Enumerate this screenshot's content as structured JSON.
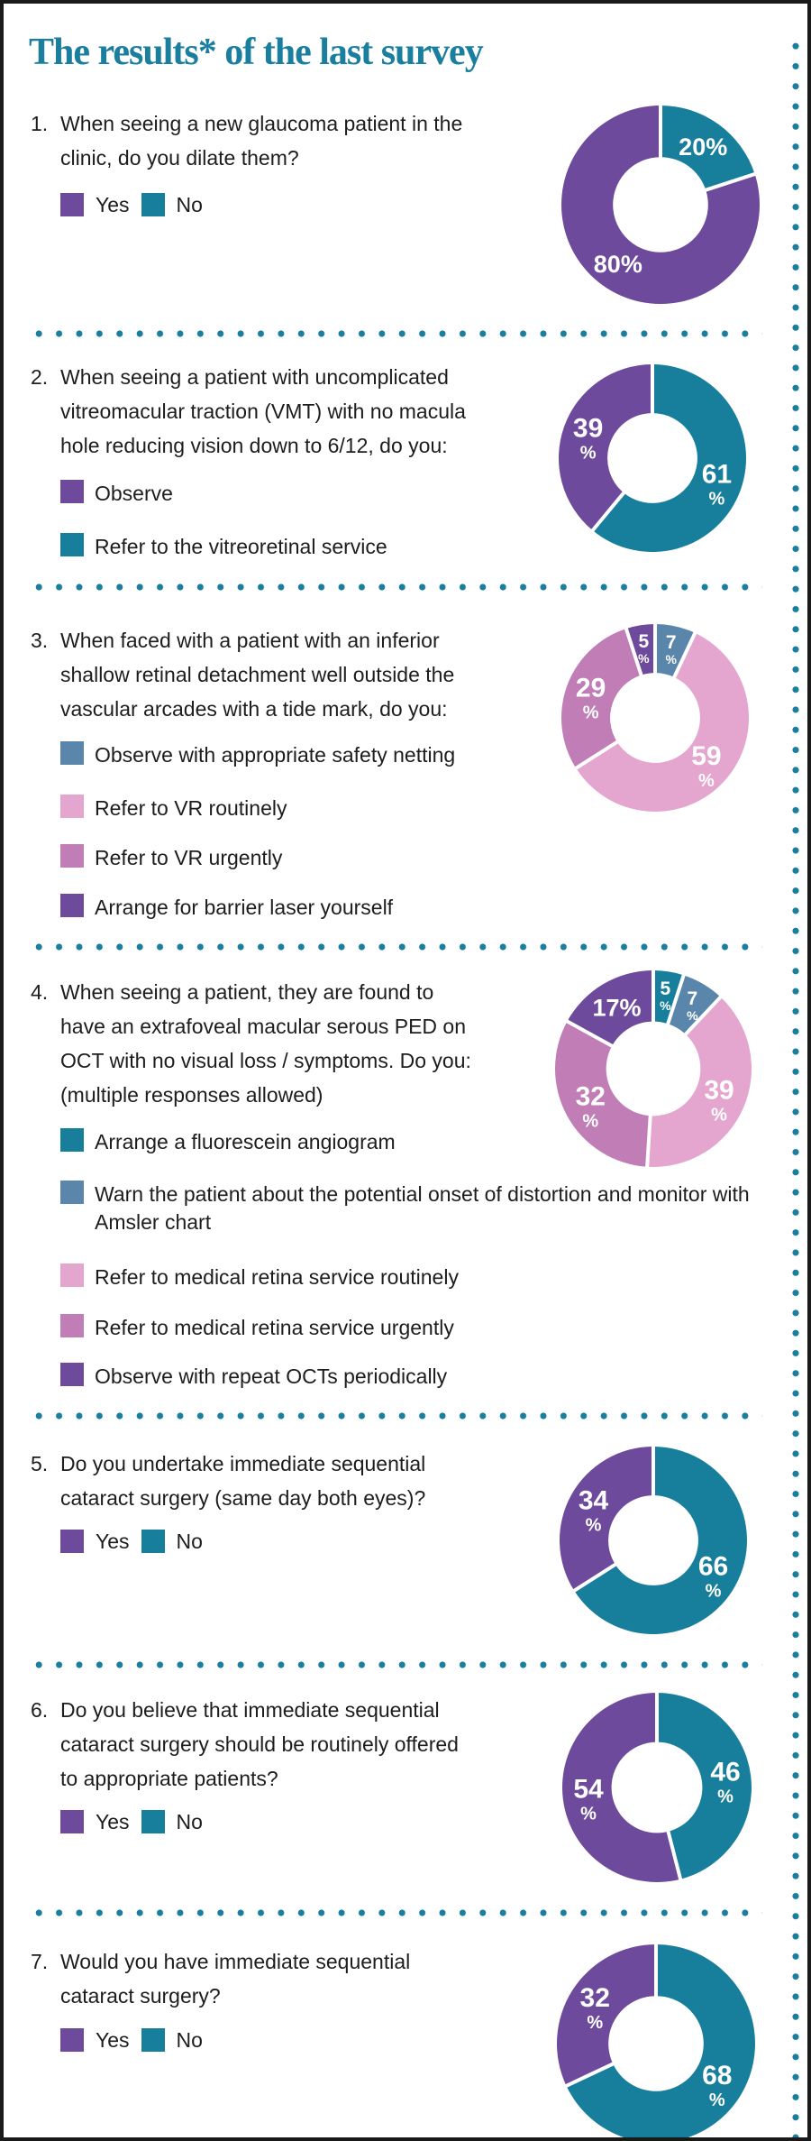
{
  "title": "The results* of the last survey",
  "palette": {
    "teal": "#177e9c",
    "purple": "#6d4a9b",
    "steel_blue": "#5b86ab",
    "light_pink": "#e4a6cf",
    "orchid": "#c07db6",
    "title_text": "#1a7f9e",
    "body_text": "#1d1d1d",
    "dots": "#1a7f9e",
    "chart_label_text": "#ffffff"
  },
  "questions": [
    {
      "number": "1.",
      "text_lines": [
        "When seeing a new glaucoma patient in the",
        "clinic, do you dilate them?"
      ],
      "legend_layout": "inline",
      "legend": [
        {
          "label": "Yes",
          "color": "purple"
        },
        {
          "label": "No",
          "color": "teal"
        }
      ]
    },
    {
      "number": "2.",
      "text_lines": [
        "When seeing a patient with uncomplicated",
        "vitreomacular traction (VMT) with no macula",
        "hole reducing vision down to 6/12, do you:"
      ],
      "legend_layout": "list",
      "legend": [
        {
          "label": "Observe",
          "color": "purple"
        },
        {
          "label": "Refer to the vitreoretinal service",
          "color": "teal"
        }
      ]
    },
    {
      "number": "3.",
      "text_lines": [
        "When faced with a patient with an inferior",
        "shallow retinal detachment well outside the",
        "vascular arcades with a tide mark, do you:"
      ],
      "legend_layout": "list",
      "legend": [
        {
          "label": "Observe with appropriate safety netting",
          "color": "steel_blue"
        },
        {
          "label": "Refer to VR routinely",
          "color": "light_pink"
        },
        {
          "label": "Refer to VR urgently",
          "color": "orchid"
        },
        {
          "label": "Arrange for barrier laser yourself",
          "color": "purple"
        }
      ]
    },
    {
      "number": "4.",
      "text_lines": [
        "When seeing a patient, they are found to",
        "have an extrafoveal macular serous PED on",
        "OCT with no visual loss / symptoms. Do you:",
        "(multiple responses allowed)"
      ],
      "legend_layout": "list",
      "legend": [
        {
          "label": "Arrange a fluorescein angiogram",
          "color": "teal"
        },
        {
          "label": "Warn the patient about the potential onset of distortion and monitor with Amsler chart",
          "color": "steel_blue"
        },
        {
          "label": "Refer to medical retina service routinely",
          "color": "light_pink"
        },
        {
          "label": "Refer to medical retina service urgently",
          "color": "orchid"
        },
        {
          "label": "Observe with repeat OCTs periodically",
          "color": "purple"
        }
      ]
    },
    {
      "number": "5.",
      "text_lines": [
        "Do you undertake immediate sequential",
        "cataract surgery (same day both eyes)?"
      ],
      "legend_layout": "inline",
      "legend": [
        {
          "label": "Yes",
          "color": "purple"
        },
        {
          "label": "No",
          "color": "teal"
        }
      ]
    },
    {
      "number": "6.",
      "text_lines": [
        "Do you believe that immediate sequential",
        "cataract surgery should be routinely offered",
        "to appropriate patients?"
      ],
      "legend_layout": "inline",
      "legend": [
        {
          "label": "Yes",
          "color": "purple"
        },
        {
          "label": "No",
          "color": "teal"
        }
      ]
    },
    {
      "number": "7.",
      "text_lines": [
        "Would you have immediate sequential",
        "cataract surgery?"
      ],
      "legend_layout": "inline",
      "legend": [
        {
          "label": "Yes",
          "color": "purple"
        },
        {
          "label": "No",
          "color": "teal"
        }
      ]
    }
  ],
  "chart_data": [
    {
      "type": "donut",
      "question": 1,
      "slices": [
        {
          "label": "No",
          "value": 20,
          "color": "teal",
          "display": [
            "20%"
          ]
        },
        {
          "label": "Yes",
          "value": 80,
          "color": "purple",
          "display": [
            "80%"
          ]
        }
      ]
    },
    {
      "type": "donut",
      "question": 2,
      "slices": [
        {
          "label": "Refer to the vitreoretinal service",
          "value": 61,
          "color": "teal",
          "display": [
            "61",
            "%"
          ]
        },
        {
          "label": "Observe",
          "value": 39,
          "color": "purple",
          "display": [
            "39",
            "%"
          ]
        }
      ]
    },
    {
      "type": "donut",
      "question": 3,
      "slices": [
        {
          "label": "Observe with appropriate safety netting",
          "value": 7,
          "color": "steel_blue",
          "display": [
            "7",
            "%"
          ]
        },
        {
          "label": "Refer to VR routinely",
          "value": 59,
          "color": "light_pink",
          "display": [
            "59",
            "%"
          ]
        },
        {
          "label": "Refer to VR urgently",
          "value": 29,
          "color": "orchid",
          "display": [
            "29",
            "%"
          ]
        },
        {
          "label": "Arrange for barrier laser yourself",
          "value": 5,
          "color": "purple",
          "display": [
            "5",
            "%"
          ]
        }
      ]
    },
    {
      "type": "donut",
      "question": 4,
      "slices": [
        {
          "label": "Arrange a fluorescein angiogram",
          "value": 5,
          "color": "teal",
          "display": [
            "5",
            "%"
          ]
        },
        {
          "label": "Warn the patient about the potential onset of distortion and monitor with Amsler chart",
          "value": 7,
          "color": "steel_blue",
          "display": [
            "7",
            "%"
          ]
        },
        {
          "label": "Refer to medical retina service routinely",
          "value": 39,
          "color": "light_pink",
          "display": [
            "39",
            "%"
          ]
        },
        {
          "label": "Refer to medical retina service urgently",
          "value": 32,
          "color": "orchid",
          "display": [
            "32",
            "%"
          ]
        },
        {
          "label": "Observe with repeat OCTs periodically",
          "value": 17,
          "color": "purple",
          "display": [
            "17%"
          ]
        }
      ]
    },
    {
      "type": "donut",
      "question": 5,
      "slices": [
        {
          "label": "No",
          "value": 66,
          "color": "teal",
          "display": [
            "66",
            "%"
          ]
        },
        {
          "label": "Yes",
          "value": 34,
          "color": "purple",
          "display": [
            "34",
            "%"
          ]
        }
      ]
    },
    {
      "type": "donut",
      "question": 6,
      "slices": [
        {
          "label": "No",
          "value": 46,
          "color": "teal",
          "display": [
            "46",
            "%"
          ]
        },
        {
          "label": "Yes",
          "value": 54,
          "color": "purple",
          "display": [
            "54",
            "%"
          ]
        }
      ]
    },
    {
      "type": "donut",
      "question": 7,
      "slices": [
        {
          "label": "No",
          "value": 68,
          "color": "teal",
          "display": [
            "68",
            "%"
          ]
        },
        {
          "label": "Yes",
          "value": 32,
          "color": "purple",
          "display": [
            "32",
            "%"
          ]
        }
      ]
    }
  ]
}
